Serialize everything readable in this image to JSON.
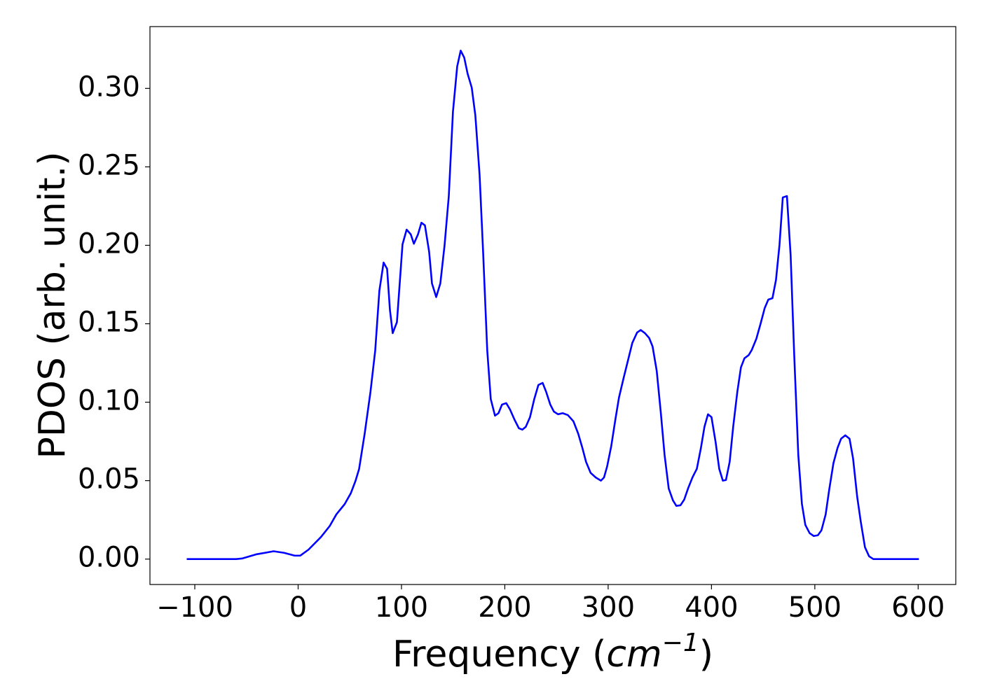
{
  "chart_data": {
    "type": "line",
    "ylabel": "PDOS (arb. unit.)",
    "xlabel": [
      "Frequency (",
      "cm",
      "−1",
      ")"
    ],
    "xlim": [
      -143.4,
      636.4
    ],
    "ylim": [
      -0.0162,
      0.3394
    ],
    "xticks": [
      {
        "value": -100,
        "label": "−100"
      },
      0,
      100,
      200,
      300,
      400,
      500,
      600
    ],
    "yticks": [
      {
        "value": 0,
        "label": "0.00"
      },
      {
        "value": 0.05,
        "label": "0.05"
      },
      {
        "value": 0.1,
        "label": "0.10"
      },
      {
        "value": 0.15,
        "label": "0.15"
      },
      {
        "value": 0.2,
        "label": "0.20"
      },
      {
        "value": 0.25,
        "label": "0.25"
      },
      {
        "value": 0.3,
        "label": "0.30"
      }
    ],
    "color": "#0000ff",
    "x": [
      -107.8,
      -60,
      -54,
      -40.7,
      -23.7,
      -13.6,
      -3.4,
      2,
      10,
      22,
      30.5,
      37,
      45,
      51,
      55.6,
      59,
      64.4,
      70,
      74.6,
      78.6,
      82.7,
      86.1,
      88.8,
      91.5,
      95.6,
      101,
      105,
      109,
      112,
      116,
      119.3,
      122.7,
      126.8,
      129.5,
      133.6,
      137.6,
      141.7,
      145.8,
      149.8,
      153.9,
      157.3,
      160.7,
      164,
      168,
      171.5,
      175.6,
      179,
      183,
      186.4,
      190.5,
      193.9,
      197.3,
      201.4,
      205,
      209.5,
      213.6,
      217,
      220.3,
      224.4,
      228.5,
      232.5,
      236.6,
      240,
      244,
      247.5,
      251.5,
      256,
      261,
      266.4,
      271,
      275,
      278.6,
      283,
      288,
      293,
      296,
      299,
      303,
      307,
      310.5,
      315,
      320,
      323.4,
      328,
      331.5,
      335.6,
      339.7,
      343,
      347,
      351,
      354.6,
      358.6,
      362.7,
      366,
      370,
      373.6,
      377.6,
      381.7,
      385.8,
      389.8,
      393.2,
      396.6,
      400,
      404,
      407.5,
      411,
      414,
      417.6,
      421,
      425,
      428.5,
      431.9,
      436,
      439,
      443.4,
      447.5,
      451.5,
      455,
      459,
      462.4,
      465.8,
      469,
      473,
      476.6,
      480,
      484,
      487.5,
      490.8,
      495,
      499,
      503,
      506.4,
      510.5,
      513.9,
      518,
      522,
      525.4,
      529.5,
      533.6,
      537,
      541,
      544.4,
      548.5,
      552.5,
      556.6,
      600.7
    ],
    "values": [
      0,
      0,
      0.0004,
      0.003,
      0.005,
      0.004,
      0.0022,
      0.0022,
      0.006,
      0.014,
      0.021,
      0.0285,
      0.035,
      0.042,
      0.05,
      0.0575,
      0.08,
      0.1066,
      0.133,
      0.171,
      0.189,
      0.185,
      0.159,
      0.144,
      0.151,
      0.2006,
      0.21,
      0.207,
      0.201,
      0.207,
      0.2144,
      0.2127,
      0.1957,
      0.1757,
      0.167,
      0.1757,
      0.2,
      0.2314,
      0.285,
      0.3139,
      0.3241,
      0.3197,
      0.3094,
      0.3005,
      0.2827,
      0.2448,
      0.1957,
      0.133,
      0.102,
      0.0914,
      0.093,
      0.0985,
      0.0994,
      0.0954,
      0.0887,
      0.0834,
      0.0825,
      0.0843,
      0.0905,
      0.102,
      0.111,
      0.1123,
      0.1066,
      0.0985,
      0.094,
      0.0923,
      0.093,
      0.0918,
      0.0878,
      0.08,
      0.071,
      0.062,
      0.055,
      0.052,
      0.05,
      0.052,
      0.059,
      0.072,
      0.089,
      0.103,
      0.1155,
      0.1288,
      0.1378,
      0.1444,
      0.146,
      0.144,
      0.1409,
      0.1355,
      0.12,
      0.093,
      0.0664,
      0.045,
      0.0374,
      0.0339,
      0.0343,
      0.0379,
      0.0455,
      0.0522,
      0.0575,
      0.0709,
      0.0843,
      0.0923,
      0.0905,
      0.0745,
      0.0575,
      0.05,
      0.0504,
      0.062,
      0.0843,
      0.1066,
      0.1222,
      0.128,
      0.13,
      0.1333,
      0.1404,
      0.15,
      0.16,
      0.1654,
      0.1663,
      0.1779,
      0.2002,
      0.2305,
      0.2314,
      0.1935,
      0.1311,
      0.0664,
      0.0352,
      0.0218,
      0.0165,
      0.0147,
      0.0152,
      0.0183,
      0.0285,
      0.0441,
      0.0611,
      0.0709,
      0.0767,
      0.0789,
      0.0767,
      0.0642,
      0.0397,
      0.0241,
      0.0076,
      0.0018,
      0,
      0
    ]
  }
}
